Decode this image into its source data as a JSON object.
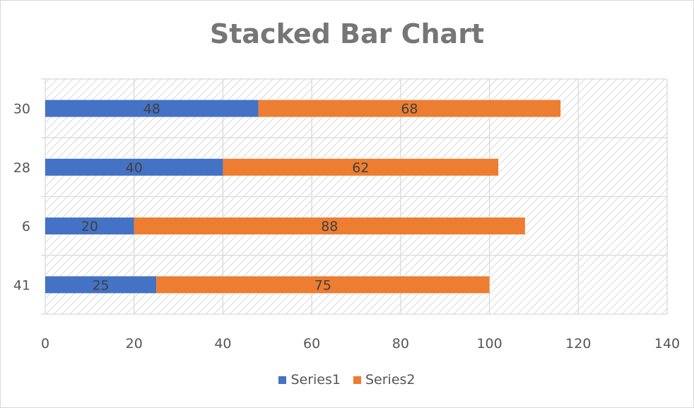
{
  "chart_data": {
    "type": "bar",
    "orientation": "horizontal",
    "stacked": true,
    "title": "Stacked Bar Chart",
    "categories": [
      "30",
      "28",
      "6",
      "41"
    ],
    "series": [
      {
        "name": "Series1",
        "values": [
          48,
          40,
          20,
          25
        ],
        "color": "#4472C4"
      },
      {
        "name": "Series2",
        "values": [
          68,
          62,
          88,
          75
        ],
        "color": "#ED7D31"
      }
    ],
    "xlim": [
      0,
      140
    ],
    "xticks": [
      0,
      20,
      40,
      60,
      80,
      100,
      120,
      140
    ],
    "grid": true,
    "data_labels": true,
    "legend_position": "bottom"
  }
}
